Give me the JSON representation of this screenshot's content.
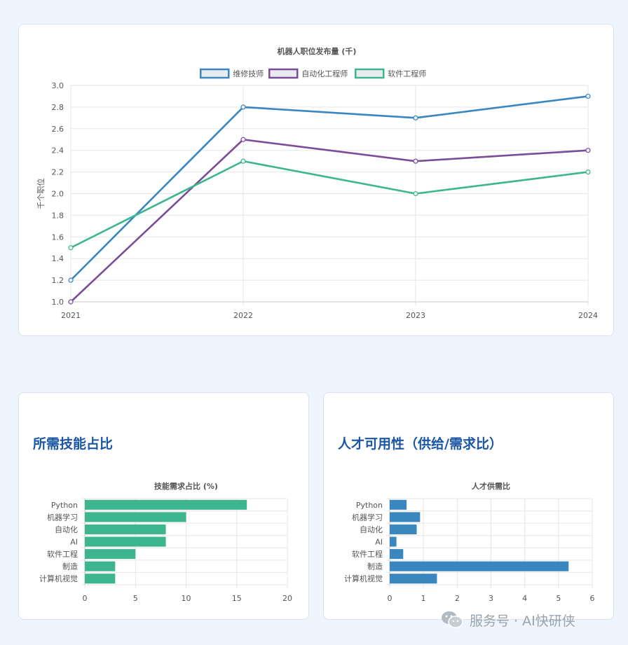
{
  "sections": {
    "skills_title": "所需技能占比",
    "supply_title": "人才可用性（供给/需求比）"
  },
  "watermark": {
    "text": "服务号 · AI快研侠",
    "icon": "wechat-icon"
  },
  "chart_data": [
    {
      "type": "line",
      "title": "机器人职位发布量 (千)",
      "ylabel": "千个职位",
      "xlabel": "",
      "x": [
        "2021",
        "2022",
        "2023",
        "2024"
      ],
      "ylim": [
        1.0,
        3.0
      ],
      "yticks": [
        "1.0",
        "1.2",
        "1.4",
        "1.6",
        "1.8",
        "2.0",
        "2.2",
        "2.4",
        "2.6",
        "2.8",
        "3.0"
      ],
      "grid": true,
      "legend": "top",
      "series": [
        {
          "name": "维修技师",
          "color": "#3a87c0",
          "values": [
            1.2,
            2.8,
            2.7,
            2.9
          ]
        },
        {
          "name": "自动化工程师",
          "color": "#7b4c98",
          "values": [
            1.0,
            2.5,
            2.3,
            2.4
          ]
        },
        {
          "name": "软件工程师",
          "color": "#3db68f",
          "values": [
            1.5,
            2.3,
            2.0,
            2.2
          ]
        }
      ]
    },
    {
      "type": "bar",
      "orientation": "horizontal",
      "title": "技能需求占比 (%)",
      "categories": [
        "Python",
        "机器学习",
        "自动化",
        "AI",
        "软件工程",
        "制造",
        "计算机视觉"
      ],
      "values": [
        16,
        10,
        8,
        8,
        5,
        3,
        3
      ],
      "xlim": [
        0,
        20
      ],
      "xticks": [
        "0",
        "5",
        "10",
        "15",
        "20"
      ],
      "color": "#3db68f",
      "grid": true
    },
    {
      "type": "bar",
      "orientation": "horizontal",
      "title": "人才供需比",
      "categories": [
        "Python",
        "机器学习",
        "自动化",
        "AI",
        "软件工程",
        "制造",
        "计算机视觉"
      ],
      "values": [
        0.5,
        0.9,
        0.8,
        0.2,
        0.4,
        5.3,
        1.4
      ],
      "xlim": [
        0,
        6
      ],
      "xticks": [
        "0",
        "1",
        "2",
        "3",
        "4",
        "5",
        "6"
      ],
      "color": "#3a87c0",
      "grid": true
    }
  ]
}
